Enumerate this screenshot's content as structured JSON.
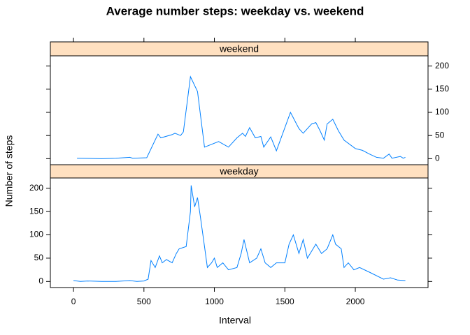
{
  "chart_data": {
    "type": "line",
    "title": "Average number steps: weekday vs. weekend",
    "x_label": "Interval",
    "y_label": "Number of steps",
    "xlim": [
      -164,
      2516
    ],
    "xticks": [
      0,
      500,
      1000,
      1500,
      2000
    ],
    "ylim": [
      -13,
      222
    ],
    "yticks": [
      0,
      50,
      100,
      150,
      200
    ],
    "strip_color": "#ffe0c0",
    "series": [
      {
        "name": "weekend",
        "color": "#0080ff",
        "x": [
          25,
          200,
          300,
          400,
          420,
          520,
          600,
          620,
          700,
          720,
          760,
          780,
          830,
          880,
          930,
          1030,
          1100,
          1160,
          1200,
          1220,
          1250,
          1290,
          1330,
          1350,
          1400,
          1440,
          1540,
          1600,
          1630,
          1690,
          1720,
          1750,
          1780,
          1800,
          1840,
          1880,
          1920,
          2000,
          2050,
          2100,
          2150,
          2200,
          2240,
          2260,
          2320,
          2340,
          2355
        ],
        "values": [
          1,
          0,
          1,
          3,
          1,
          2,
          53,
          45,
          52,
          55,
          50,
          58,
          177,
          145,
          25,
          37,
          25,
          45,
          55,
          48,
          67,
          45,
          48,
          25,
          47,
          17,
          100,
          65,
          55,
          75,
          78,
          60,
          40,
          75,
          85,
          60,
          40,
          22,
          18,
          10,
          3,
          1,
          10,
          1,
          5,
          1,
          3
        ]
      },
      {
        "name": "weekday",
        "color": "#0080ff",
        "x": [
          0,
          50,
          100,
          200,
          300,
          400,
          450,
          500,
          530,
          550,
          580,
          610,
          630,
          660,
          700,
          730,
          750,
          800,
          830,
          835,
          860,
          880,
          900,
          930,
          950,
          980,
          1000,
          1020,
          1060,
          1100,
          1160,
          1190,
          1210,
          1250,
          1300,
          1330,
          1360,
          1400,
          1440,
          1500,
          1530,
          1560,
          1600,
          1630,
          1660,
          1700,
          1720,
          1760,
          1800,
          1840,
          1860,
          1900,
          1920,
          1950,
          1990,
          2030,
          2100,
          2200,
          2250,
          2300,
          2355
        ],
        "values": [
          2,
          0,
          1,
          0,
          0,
          2,
          0,
          1,
          5,
          45,
          30,
          55,
          40,
          47,
          40,
          60,
          70,
          75,
          150,
          206,
          160,
          180,
          140,
          75,
          30,
          40,
          50,
          30,
          40,
          25,
          30,
          60,
          90,
          40,
          50,
          70,
          40,
          30,
          40,
          40,
          80,
          100,
          60,
          90,
          50,
          70,
          80,
          60,
          70,
          100,
          80,
          70,
          30,
          40,
          25,
          30,
          20,
          5,
          8,
          3,
          2
        ]
      }
    ]
  }
}
